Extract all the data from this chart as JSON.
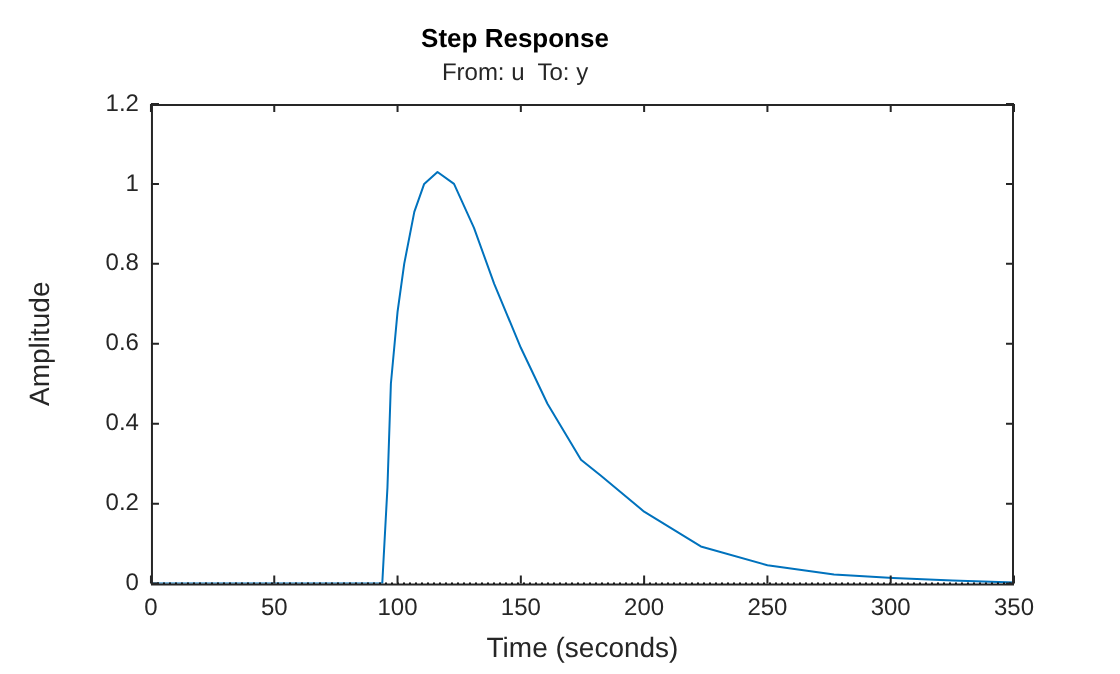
{
  "chart_data": {
    "type": "line",
    "title": "Step Response",
    "subtitle": "From: u  To: y",
    "xlabel": "Time (seconds)",
    "ylabel": "Amplitude",
    "xlim": [
      0,
      350
    ],
    "xticks": [
      0,
      50,
      100,
      150,
      200,
      250,
      300,
      350
    ],
    "ylim": [
      0,
      1.2
    ],
    "yticks": [
      0,
      0.2,
      0.4,
      0.6,
      0.8,
      1,
      1.2
    ],
    "grid": false,
    "legend": false,
    "marker": "none",
    "line_style": "solid",
    "ref_lines": [
      {
        "axis": "y",
        "value": 0,
        "color": "#000000",
        "line_style": "dotted"
      }
    ],
    "series": [
      {
        "color": "#0072bd",
        "x": [
          0,
          93.8,
          95.9,
          97.3,
          100,
          102.7,
          106.8,
          110.8,
          116.2,
          122.9,
          131,
          139.2,
          150,
          160.8,
          174.4,
          182.5,
          200,
          223,
          250,
          277,
          301,
          325,
          350
        ],
        "values": [
          0,
          0,
          0.24,
          0.5,
          0.68,
          0.8,
          0.93,
          1.0,
          1.03,
          1.0,
          0.89,
          0.75,
          0.59,
          0.45,
          0.31,
          0.27,
          0.18,
          0.093,
          0.046,
          0.023,
          0.014,
          0.008,
          0.003
        ]
      }
    ]
  }
}
